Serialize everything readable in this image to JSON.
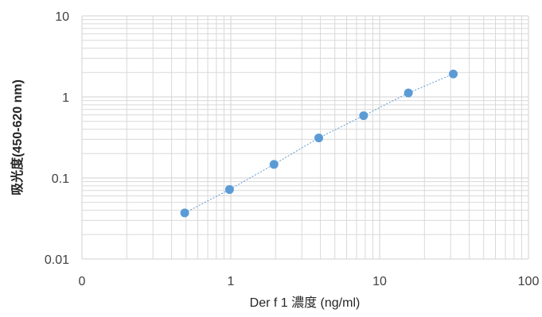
{
  "chart_data": {
    "type": "scatter",
    "title": "",
    "xlabel": "Der f 1 濃度 (ng/ml)",
    "ylabel": "吸光度(450-620 nm)",
    "x_scale": "log",
    "y_scale": "log",
    "xlim": [
      0.1,
      100
    ],
    "ylim": [
      0.01,
      10
    ],
    "grid": true,
    "legend": "none",
    "x_tick_labels": [
      "0",
      "1",
      "10",
      "100"
    ],
    "y_tick_labels": [
      "0.01",
      "0.1",
      "1",
      "10"
    ],
    "series": [
      {
        "x": [
          0.49,
          0.98,
          1.95,
          3.9,
          7.8,
          15.6,
          31.25
        ],
        "y": [
          0.037,
          0.072,
          0.147,
          0.312,
          0.587,
          1.12,
          1.92
        ],
        "color": "#5B9BD5",
        "trendline": "dotted"
      }
    ]
  }
}
